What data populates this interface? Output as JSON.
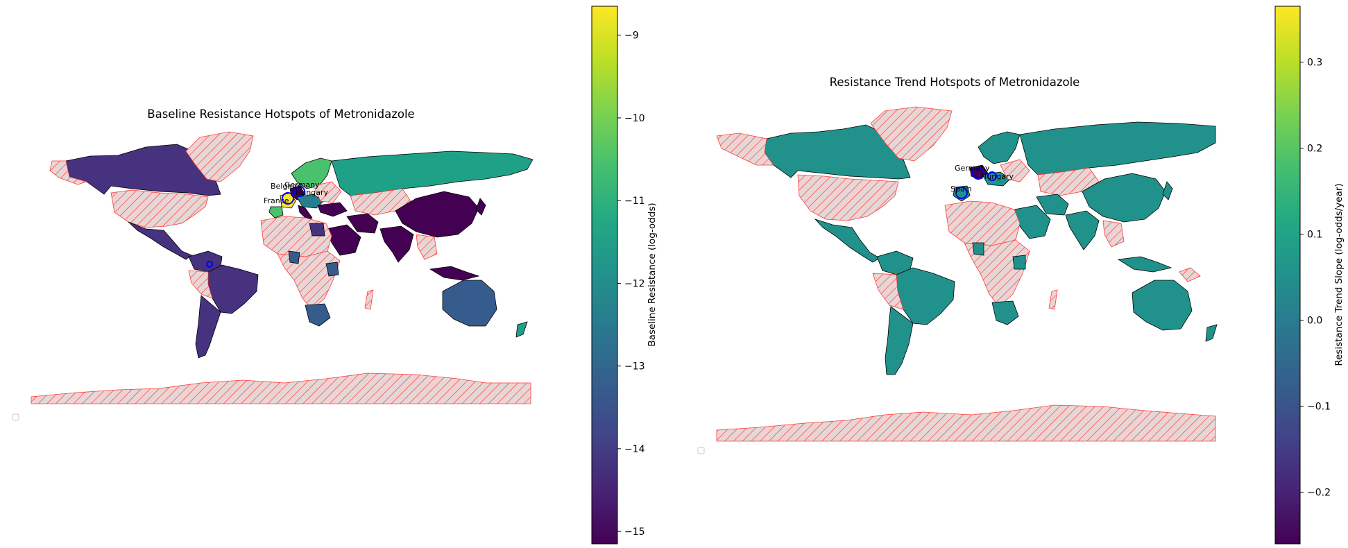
{
  "maps": [
    {
      "title": "Baseline Resistance Hotspots of Metronidazole",
      "colorbar": {
        "label": "Baseline Resistance (log-odds)",
        "ticks": [
          "−9",
          "−10",
          "−11",
          "−12",
          "−13",
          "−14",
          "−15"
        ],
        "range": [
          -15.15,
          -8.65
        ],
        "colormap": "viridis"
      },
      "country_labels": [
        "Belgium",
        "Germany",
        "Hungary",
        "France"
      ],
      "no_data_style": {
        "fill": "#e6d5d5",
        "hatch": "#ff3030"
      },
      "highlight_outline": "#0000ff"
    },
    {
      "title": "Resistance Trend Hotspots of Metronidazole",
      "colorbar": {
        "label": "Resistance Trend Slope (log-odds/year)",
        "ticks": [
          "0.3",
          "0.2",
          "0.1",
          "0.0",
          "−0.1",
          "−0.2"
        ],
        "range": [
          -0.26,
          0.365
        ],
        "colormap": "viridis"
      },
      "country_labels": [
        "Spain",
        "Germany",
        "Hungary"
      ],
      "no_data_style": {
        "fill": "#e6d5d5",
        "hatch": "#ff3030"
      },
      "highlight_outline": "#0000ff"
    }
  ],
  "colors": {
    "dark_purple": "#440154",
    "indigo": "#46327e",
    "blue_slate": "#365c8d",
    "teal": "#277f8e",
    "green_teal": "#1fa187",
    "green": "#4ac16d",
    "yellow": "#fde725",
    "country_edge": "#000000",
    "highlight": "#0000ff"
  }
}
